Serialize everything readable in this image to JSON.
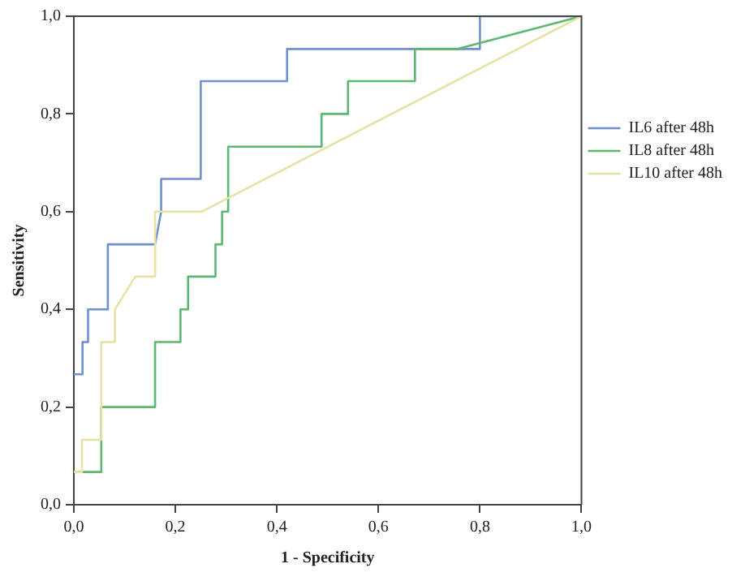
{
  "chart_data": {
    "type": "line",
    "xlabel": "1 - Specificity",
    "ylabel": "Sensitivity",
    "xlim": [
      0,
      1
    ],
    "ylim": [
      0,
      1
    ],
    "xticks": [
      {
        "value": 0,
        "label": "0,0"
      },
      {
        "value": 0.2,
        "label": "0,2"
      },
      {
        "value": 0.4,
        "label": "0,4"
      },
      {
        "value": 0.6,
        "label": "0,6"
      },
      {
        "value": 0.8,
        "label": "0,8"
      },
      {
        "value": 1,
        "label": "1,0"
      }
    ],
    "yticks": [
      {
        "value": 0,
        "label": "0,0"
      },
      {
        "value": 0.2,
        "label": "0,2"
      },
      {
        "value": 0.4,
        "label": "0,4"
      },
      {
        "value": 0.6,
        "label": "0,6"
      },
      {
        "value": 0.8,
        "label": "0,8"
      },
      {
        "value": 1,
        "label": "1,0"
      }
    ],
    "grid": false,
    "legend": "right",
    "marker": "none",
    "line_style": "solid",
    "series": [
      {
        "name": "IL6 after 48h",
        "color": "#6f8fd0",
        "x": [
          0,
          0.017,
          0.017,
          0.028,
          0.028,
          0.067,
          0.067,
          0.16,
          0.172,
          0.172,
          0.25,
          0.25,
          0.42,
          0.42,
          0.8,
          0.8,
          1
        ],
        "values": [
          0.267,
          0.267,
          0.333,
          0.333,
          0.4,
          0.4,
          0.533,
          0.533,
          0.6,
          0.667,
          0.667,
          0.867,
          0.867,
          0.933,
          0.933,
          1,
          1
        ]
      },
      {
        "name": "IL8 after 48h",
        "color": "#5cb870",
        "x": [
          0,
          0.054,
          0.054,
          0.16,
          0.16,
          0.21,
          0.21,
          0.225,
          0.225,
          0.279,
          0.279,
          0.292,
          0.292,
          0.304,
          0.304,
          0.488,
          0.488,
          0.54,
          0.54,
          0.672,
          0.672,
          0.756,
          1
        ],
        "values": [
          0.067,
          0.067,
          0.2,
          0.2,
          0.333,
          0.333,
          0.4,
          0.4,
          0.467,
          0.467,
          0.533,
          0.533,
          0.6,
          0.6,
          0.733,
          0.733,
          0.8,
          0.8,
          0.867,
          0.867,
          0.933,
          0.933,
          1
        ]
      },
      {
        "name": "IL10 after 48h",
        "color": "#e6e2a6",
        "x": [
          0,
          0.016,
          0.016,
          0.054,
          0.054,
          0.081,
          0.081,
          0.121,
          0.16,
          0.16,
          0.252,
          1
        ],
        "values": [
          0.067,
          0.067,
          0.133,
          0.133,
          0.333,
          0.333,
          0.4,
          0.467,
          0.467,
          0.6,
          0.6,
          1
        ]
      }
    ]
  }
}
